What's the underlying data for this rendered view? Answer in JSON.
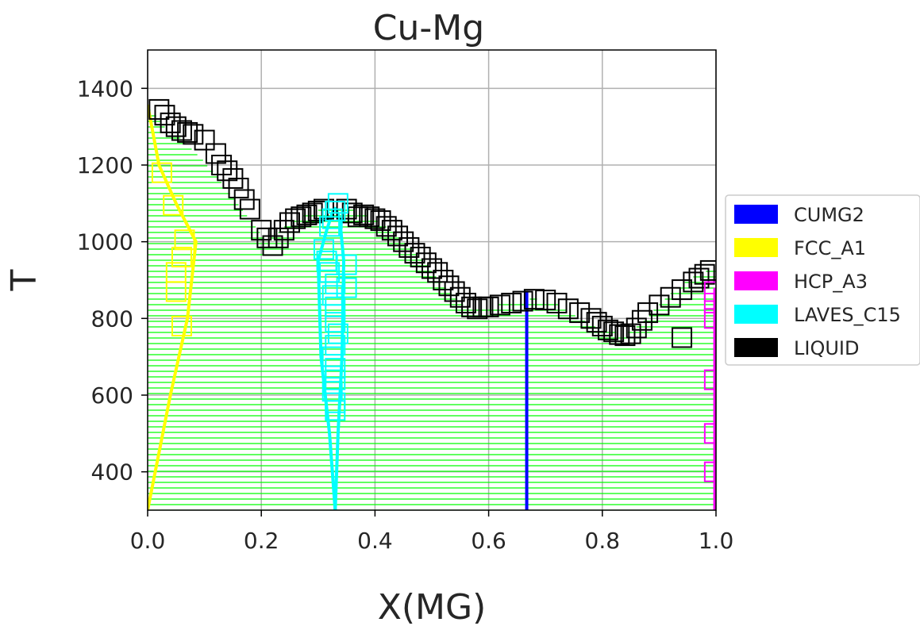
{
  "chart_data": {
    "type": "scatter",
    "title": "Cu-Mg",
    "xlabel": "X(MG)",
    "ylabel": "T",
    "xlim": [
      0.0,
      1.0
    ],
    "ylim": [
      300,
      1500
    ],
    "xticks": [
      0.0,
      0.2,
      0.4,
      0.6,
      0.8,
      1.0
    ],
    "xtick_labels": [
      "0.0",
      "0.2",
      "0.4",
      "0.6",
      "0.8",
      "1.0"
    ],
    "yticks": [
      400,
      600,
      800,
      1000,
      1200,
      1400
    ],
    "ytick_labels": [
      "400",
      "600",
      "800",
      "1000",
      "1200",
      "1400"
    ],
    "grid": true,
    "legend_position": "right",
    "legend": [
      {
        "label": "CUMG2",
        "color": "#0000ff"
      },
      {
        "label": "FCC_A1",
        "color": "#ffff00"
      },
      {
        "label": "HCP_A3",
        "color": "#ff00ff"
      },
      {
        "label": "LAVES_C15",
        "color": "#00ffff"
      },
      {
        "label": "LIQUID",
        "color": "#000000"
      }
    ],
    "tie_line_color": "#00ff00",
    "tie_line_step": 7,
    "phase_lines": [
      {
        "name": "CUMG2",
        "color": "#0000ff",
        "x": [
          0.667,
          0.667
        ],
        "y": [
          300,
          872
        ]
      },
      {
        "name": "HCP_A3",
        "color": "#ff00ff",
        "x": [
          0.998,
          0.998
        ],
        "y": [
          300,
          880
        ]
      },
      {
        "name": "FCC_A1",
        "color": "#ffff00",
        "x": [
          0.0,
          0.02,
          0.05,
          0.085,
          0.07,
          0.04,
          0.0
        ],
        "y": [
          1357,
          1200,
          1100,
          1000,
          800,
          600,
          300
        ]
      },
      {
        "name": "LAVES_C15_left",
        "color": "#00ffff",
        "x": [
          0.33,
          0.32,
          0.305,
          0.3,
          0.315,
          0.326,
          0.33
        ],
        "y": [
          300,
          500,
          700,
          950,
          1030,
          1080,
          1090
        ]
      },
      {
        "name": "LAVES_C15_right",
        "color": "#00ffff",
        "x": [
          0.33,
          0.335,
          0.342,
          0.345,
          0.338,
          0.33
        ],
        "y": [
          300,
          500,
          700,
          950,
          1060,
          1090
        ]
      }
    ],
    "liquidus": {
      "x": [
        0.0,
        0.03,
        0.06,
        0.1,
        0.14,
        0.18,
        0.21,
        0.24,
        0.28,
        0.32,
        0.36,
        0.4,
        0.44,
        0.48,
        0.52,
        0.56,
        0.6,
        0.64,
        0.68,
        0.72,
        0.76,
        0.8,
        0.84,
        0.87,
        0.9,
        0.93,
        0.96,
        1.0
      ],
      "y": [
        1357,
        1300,
        1270,
        1210,
        1140,
        1060,
        1000,
        1040,
        1075,
        1090,
        1085,
        1060,
        1020,
        960,
        890,
        830,
        830,
        845,
        852,
        840,
        800,
        770,
        760,
        790,
        840,
        880,
        910,
        935
      ]
    },
    "markers": {
      "LIQUID": {
        "color": "#000000",
        "points": [
          [
            0.02,
            1345
          ],
          [
            0.03,
            1330
          ],
          [
            0.04,
            1310
          ],
          [
            0.05,
            1300
          ],
          [
            0.06,
            1290
          ],
          [
            0.07,
            1285
          ],
          [
            0.08,
            1280
          ],
          [
            0.1,
            1265
          ],
          [
            0.12,
            1230
          ],
          [
            0.13,
            1200
          ],
          [
            0.14,
            1185
          ],
          [
            0.15,
            1165
          ],
          [
            0.16,
            1140
          ],
          [
            0.17,
            1110
          ],
          [
            0.18,
            1085
          ],
          [
            0.2,
            1030
          ],
          [
            0.21,
            1010
          ],
          [
            0.22,
            990
          ],
          [
            0.23,
            1010
          ],
          [
            0.24,
            1030
          ],
          [
            0.25,
            1050
          ],
          [
            0.26,
            1060
          ],
          [
            0.27,
            1065
          ],
          [
            0.28,
            1070
          ],
          [
            0.29,
            1075
          ],
          [
            0.3,
            1080
          ],
          [
            0.31,
            1085
          ],
          [
            0.35,
            1085
          ],
          [
            0.36,
            1075
          ],
          [
            0.37,
            1065
          ],
          [
            0.38,
            1070
          ],
          [
            0.39,
            1065
          ],
          [
            0.4,
            1060
          ],
          [
            0.41,
            1055
          ],
          [
            0.42,
            1040
          ],
          [
            0.43,
            1030
          ],
          [
            0.44,
            1015
          ],
          [
            0.45,
            1000
          ],
          [
            0.46,
            985
          ],
          [
            0.47,
            970
          ],
          [
            0.48,
            960
          ],
          [
            0.49,
            945
          ],
          [
            0.5,
            930
          ],
          [
            0.51,
            920
          ],
          [
            0.52,
            900
          ],
          [
            0.53,
            885
          ],
          [
            0.54,
            870
          ],
          [
            0.55,
            855
          ],
          [
            0.56,
            840
          ],
          [
            0.57,
            830
          ],
          [
            0.58,
            825
          ],
          [
            0.59,
            830
          ],
          [
            0.6,
            830
          ],
          [
            0.62,
            835
          ],
          [
            0.64,
            840
          ],
          [
            0.66,
            845
          ],
          [
            0.68,
            850
          ],
          [
            0.7,
            848
          ],
          [
            0.72,
            840
          ],
          [
            0.74,
            825
          ],
          [
            0.76,
            815
          ],
          [
            0.78,
            800
          ],
          [
            0.79,
            790
          ],
          [
            0.8,
            780
          ],
          [
            0.81,
            770
          ],
          [
            0.82,
            765
          ],
          [
            0.83,
            758
          ],
          [
            0.84,
            755
          ],
          [
            0.85,
            760
          ],
          [
            0.86,
            775
          ],
          [
            0.87,
            795
          ],
          [
            0.88,
            815
          ],
          [
            0.9,
            835
          ],
          [
            0.92,
            855
          ],
          [
            0.94,
            875
          ],
          [
            0.96,
            895
          ],
          [
            0.97,
            905
          ],
          [
            0.98,
            915
          ],
          [
            0.99,
            925
          ],
          [
            0.94,
            750
          ]
        ]
      },
      "FCC_A1": {
        "color": "#ffff00",
        "points": [
          [
            0.025,
            1180
          ],
          [
            0.045,
            1095
          ],
          [
            0.065,
            1005
          ],
          [
            0.06,
            960
          ],
          [
            0.05,
            920
          ],
          [
            0.05,
            870
          ],
          [
            0.06,
            780
          ]
        ]
      },
      "LAVES_C15": {
        "color": "#00ffff",
        "points": [
          [
            0.335,
            1100
          ],
          [
            0.33,
            1080
          ],
          [
            0.325,
            1060
          ],
          [
            0.32,
            1040
          ],
          [
            0.31,
            980
          ],
          [
            0.315,
            950
          ],
          [
            0.32,
            920
          ],
          [
            0.33,
            890
          ],
          [
            0.325,
            860
          ],
          [
            0.33,
            830
          ],
          [
            0.33,
            790
          ],
          [
            0.335,
            760
          ],
          [
            0.33,
            730
          ],
          [
            0.325,
            700
          ],
          [
            0.33,
            670
          ],
          [
            0.33,
            640
          ],
          [
            0.325,
            610
          ],
          [
            0.33,
            580
          ],
          [
            0.33,
            560
          ],
          [
            0.35,
            940
          ],
          [
            0.35,
            880
          ]
        ]
      },
      "HCP_A3": {
        "color": "#ff00ff",
        "points": [
          [
            0.997,
            870
          ],
          [
            0.997,
            840
          ],
          [
            0.997,
            800
          ],
          [
            0.997,
            640
          ],
          [
            0.997,
            500
          ],
          [
            0.997,
            400
          ]
        ]
      }
    }
  }
}
